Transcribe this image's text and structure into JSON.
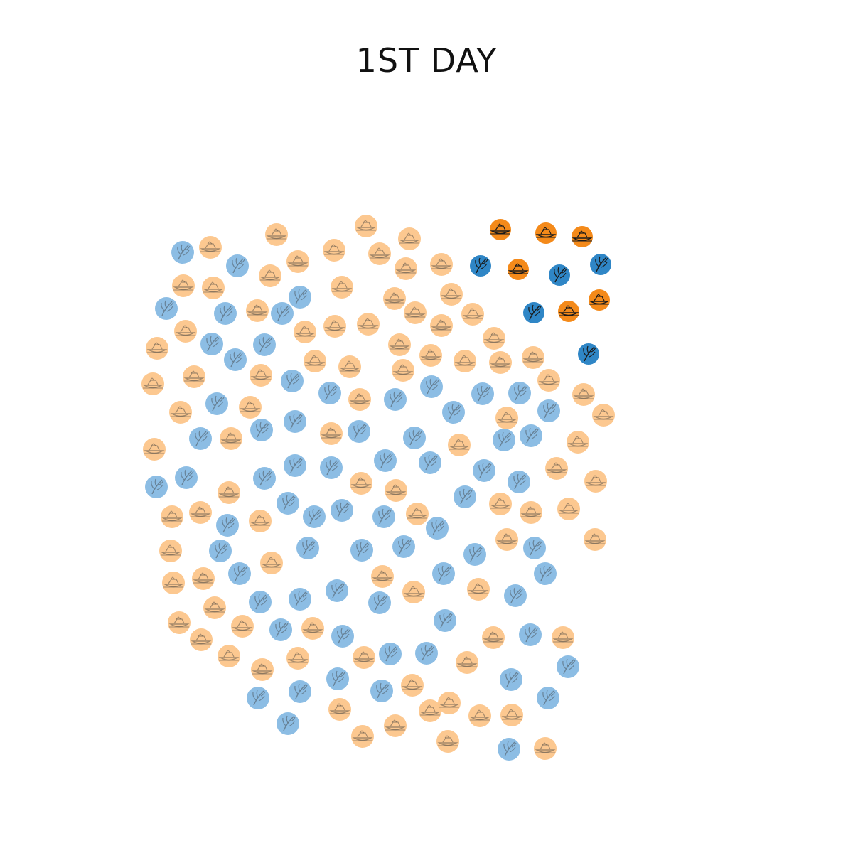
{
  "title": "1ST DAY",
  "colors": {
    "orange_faded": "#fcc58a",
    "blue_faded": "#86b9e3",
    "orange": "#f48a1a",
    "blue": "#2f86c6",
    "glyph": "#1a1a1a"
  },
  "icons": {
    "orange": "boat-icon",
    "blue": "wheat-icon"
  },
  "legend": []
}
